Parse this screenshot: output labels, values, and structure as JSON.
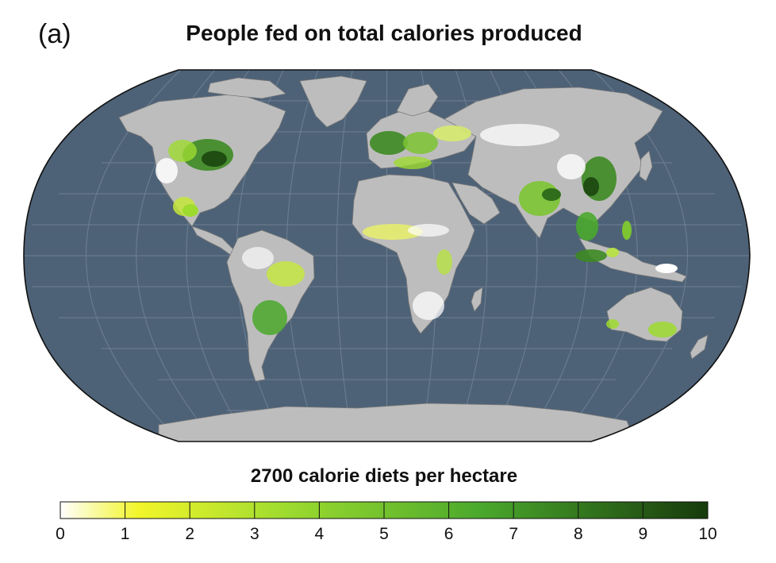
{
  "panel_label": "(a)",
  "title": "People fed on total calories produced",
  "legend": {
    "title": "2700 calorie diets per hectare",
    "min": 0,
    "max": 10,
    "ticks": [
      "0",
      "1",
      "2",
      "3",
      "4",
      "5",
      "6",
      "7",
      "8",
      "9",
      "10"
    ],
    "colors": [
      "#ffffff",
      "#f2f52a",
      "#9ddb2f",
      "#4aa82c",
      "#173a0c"
    ]
  },
  "map": {
    "projection": "Robinson",
    "ocean_color": "#4e6277",
    "land_no_data_color": "#bdbdbd",
    "graticule_color": "#6d7f92"
  }
}
